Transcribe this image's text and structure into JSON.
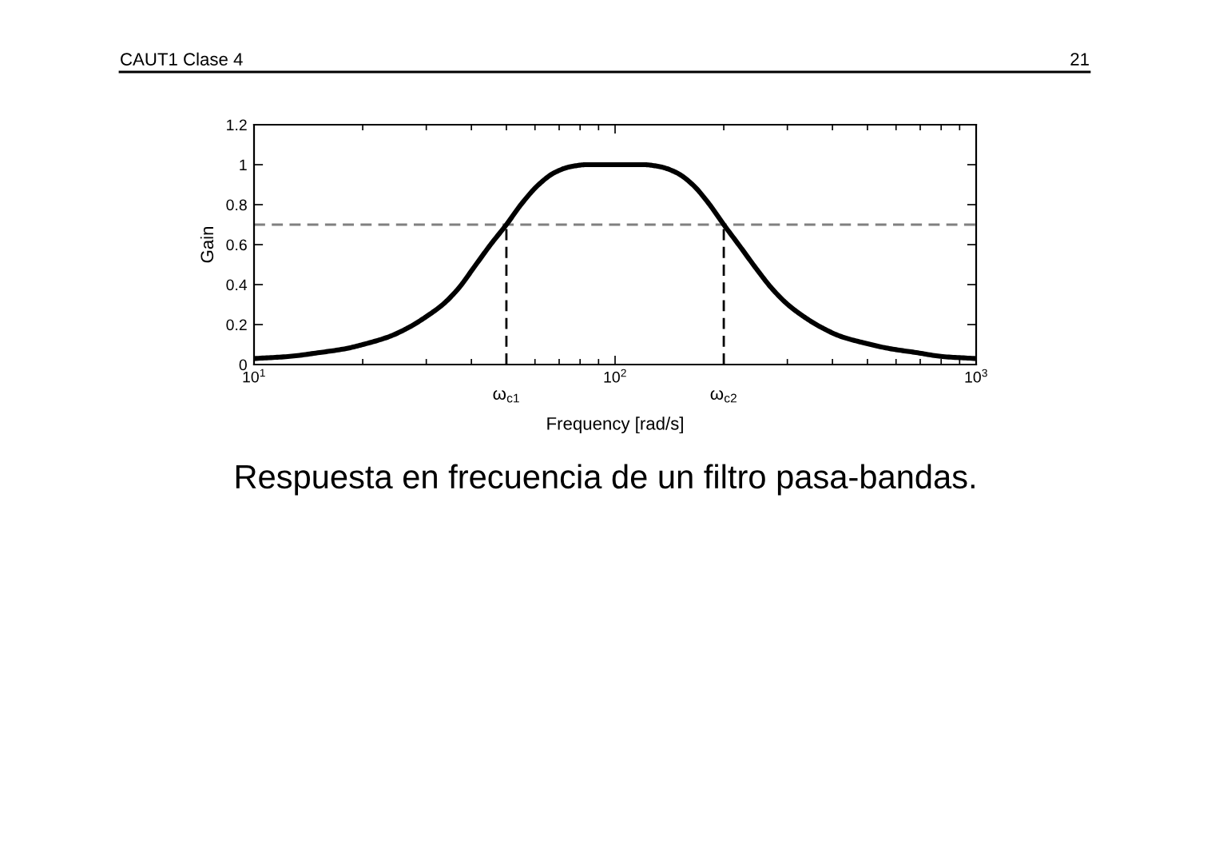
{
  "chart_data": {
    "type": "line",
    "xlabel": "Frequency [rad/s]",
    "ylabel": "Gain",
    "log": "x",
    "xlim": [
      10,
      1000
    ],
    "xticks": [
      {
        "value": 10,
        "label": "10$^{1}$"
      },
      {
        "value": 100,
        "label": "10$^{2}$"
      },
      {
        "value": 1000,
        "label": "10$^{3}$"
      }
    ],
    "ylim": [
      0,
      1.2
    ],
    "yticks": [
      0,
      0.2,
      0.4,
      0.6,
      0.8,
      1,
      1.2
    ],
    "series": [
      {
        "color": "#000000",
        "line_style": "solid",
        "x": [
          10,
          12.4,
          15.2,
          18,
          20,
          23.7,
          27.1,
          30,
          33.3,
          36.8,
          40.8,
          45.2,
          50,
          55.4,
          61.4,
          67.9,
          75.3,
          83.4,
          100,
          120,
          133,
          148,
          164,
          181,
          200,
          222,
          246,
          272,
          301,
          333,
          369,
          423,
          485,
          575,
          682,
          807,
          1000
        ],
        "values": [
          0.03,
          0.04,
          0.06,
          0.08,
          0.1,
          0.14,
          0.19,
          0.24,
          0.3,
          0.38,
          0.49,
          0.6,
          0.7,
          0.81,
          0.9,
          0.96,
          0.99,
          1.0,
          1.0,
          1.0,
          0.99,
          0.96,
          0.9,
          0.81,
          0.7,
          0.59,
          0.48,
          0.38,
          0.3,
          0.24,
          0.19,
          0.14,
          0.11,
          0.08,
          0.06,
          0.04,
          0.03
        ]
      },
      {
        "color": "#000000",
        "line_style": "dashed",
        "x": [
          50,
          50
        ],
        "values": [
          0,
          0.7
        ]
      },
      {
        "color": "#000000",
        "line_style": "dashed",
        "x": [
          200,
          200
        ],
        "values": [
          0,
          0.7
        ]
      }
    ],
    "ref_lines": [
      {
        "axis": "y",
        "value": 0.7,
        "color": "#808080",
        "line_style": "dashed"
      }
    ],
    "annotations": [
      {
        "text": "ω$_{c1}$",
        "x": 50,
        "y": 0
      },
      {
        "text": "ω$_{c2}$",
        "x": 200,
        "y": 0
      },
      "CAUT1 Clase 4",
      "21",
      "Respuesta en frecuencia de un filtro pasa-bandas."
    ]
  }
}
